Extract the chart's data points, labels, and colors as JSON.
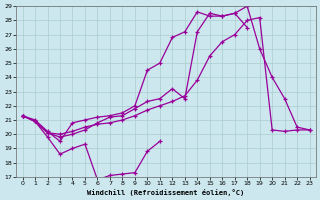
{
  "xlabel": "Windchill (Refroidissement éolien,°C)",
  "bg_color": "#cce8ee",
  "line_color": "#990099",
  "grid_color": "#aacccc",
  "xlim": [
    -0.5,
    23.5
  ],
  "ylim": [
    17,
    29
  ],
  "yticks": [
    17,
    18,
    19,
    20,
    21,
    22,
    23,
    24,
    25,
    26,
    27,
    28,
    29
  ],
  "xticks": [
    0,
    1,
    2,
    3,
    4,
    5,
    6,
    7,
    8,
    9,
    10,
    11,
    12,
    13,
    14,
    15,
    16,
    17,
    18,
    19,
    20,
    21,
    22,
    23
  ],
  "line1_x": [
    0,
    1,
    2,
    3,
    4,
    5,
    6,
    7,
    8,
    9,
    10,
    11
  ],
  "line1_y": [
    21.3,
    20.9,
    19.8,
    18.6,
    19.0,
    19.3,
    16.8,
    17.1,
    17.2,
    17.3,
    18.8,
    19.5
  ],
  "line2_x": [
    0,
    1,
    2,
    3,
    4,
    5,
    6,
    7,
    8,
    9,
    10,
    11,
    12,
    13,
    14,
    15,
    16,
    17,
    18,
    19,
    20,
    21,
    22,
    23
  ],
  "line2_y": [
    21.3,
    20.9,
    20.1,
    20.0,
    20.2,
    20.5,
    20.7,
    20.8,
    21.0,
    21.3,
    21.7,
    22.0,
    22.3,
    22.7,
    23.8,
    25.5,
    26.5,
    27.0,
    28.0,
    28.2,
    20.3,
    20.2,
    20.3,
    20.3
  ],
  "line3_x": [
    0,
    1,
    2,
    3,
    4,
    5,
    6,
    7,
    8,
    9,
    10,
    11,
    12,
    13,
    14,
    15,
    16,
    17,
    18,
    19,
    20,
    21,
    22,
    23
  ],
  "line3_y": [
    21.3,
    20.9,
    20.1,
    19.8,
    20.0,
    20.3,
    20.8,
    21.2,
    21.3,
    21.8,
    22.3,
    22.5,
    23.2,
    22.5,
    27.2,
    28.5,
    28.3,
    28.5,
    29.0,
    26.0,
    24.0,
    22.5,
    20.5,
    20.3
  ],
  "line4_x": [
    0,
    1,
    2,
    3,
    4,
    5,
    6,
    7,
    8,
    9,
    10,
    11,
    12,
    13,
    14,
    15,
    16,
    17,
    18
  ],
  "line4_y": [
    21.3,
    21.0,
    20.2,
    19.5,
    20.8,
    21.0,
    21.2,
    21.3,
    21.5,
    22.0,
    24.5,
    25.0,
    26.8,
    27.2,
    28.6,
    28.3,
    28.3,
    28.5,
    27.5
  ]
}
